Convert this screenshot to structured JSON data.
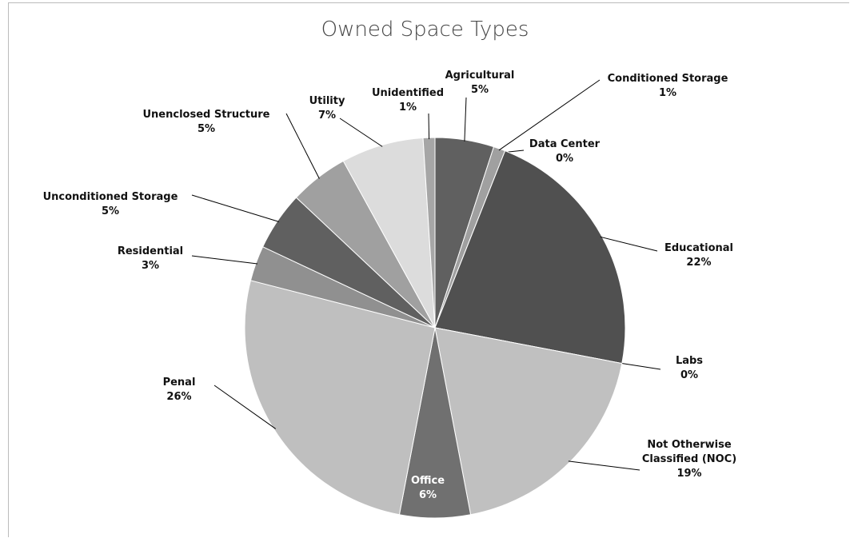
{
  "chart_data": {
    "type": "pie",
    "title": "Owned Space Types",
    "categories": [
      "Agricultural",
      "Conditioned Storage",
      "Data Center",
      "Educational",
      "Labs",
      "Not Otherwise Classified (NOC)",
      "Office",
      "Penal",
      "Residential",
      "Unconditioned Storage",
      "Unenclosed Structure",
      "Utility",
      "Unidentified"
    ],
    "values": [
      5,
      1,
      0,
      22,
      0,
      19,
      6,
      26,
      3,
      5,
      5,
      7,
      1
    ],
    "value_labels": [
      "5%",
      "1%",
      "0%",
      "22%",
      "0%",
      "19%",
      "6%",
      "26%",
      "3%",
      "5%",
      "5%",
      "7%",
      "1%"
    ],
    "colors": [
      "#606060",
      "#a0a0a0",
      "#888888",
      "#505050",
      "#999999",
      "#c0c0c0",
      "#707070",
      "#bfbfbf",
      "#909090",
      "#606060",
      "#a0a0a0",
      "#dcdcdc",
      "#a6a6a6"
    ]
  }
}
